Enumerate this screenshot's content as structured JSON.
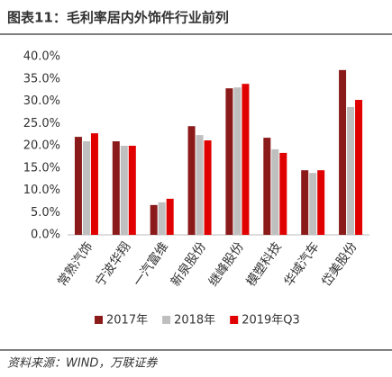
{
  "chart_data": {
    "type": "bar",
    "title": "图表11：毛利率居内外饰件行业前列",
    "source": "资料来源：WIND，万联证券",
    "categories": [
      "常熟汽饰",
      "宁波华翔",
      "一汽富维",
      "新泉股份",
      "继峰股份",
      "模塑科技",
      "华域汽车",
      "岱美股份"
    ],
    "series": [
      {
        "name": "2017年",
        "color": "#8b1a1a",
        "values": [
          22.0,
          21.0,
          6.7,
          24.4,
          32.9,
          21.8,
          14.5,
          37.0
        ]
      },
      {
        "name": "2018年",
        "color": "#bfbfbf",
        "values": [
          21.0,
          20.0,
          7.3,
          22.4,
          33.1,
          19.2,
          13.9,
          28.7
        ]
      },
      {
        "name": "2019年Q3",
        "color": "#e00000",
        "values": [
          22.8,
          20.0,
          8.1,
          21.2,
          33.9,
          18.4,
          14.5,
          30.3
        ]
      }
    ],
    "ylim": [
      0,
      40
    ],
    "yticks": [
      {
        "value": 0,
        "label": "0.0%"
      },
      {
        "value": 5,
        "label": "5.0%"
      },
      {
        "value": 10,
        "label": "10.0%"
      },
      {
        "value": 15,
        "label": "15.0%"
      },
      {
        "value": 20,
        "label": "20.0%"
      },
      {
        "value": 25,
        "label": "25.0%"
      },
      {
        "value": 30,
        "label": "30.0%"
      },
      {
        "value": 35,
        "label": "35.0%"
      },
      {
        "value": 40,
        "label": "40.0%"
      }
    ],
    "grid": false,
    "legend": "bottom"
  }
}
